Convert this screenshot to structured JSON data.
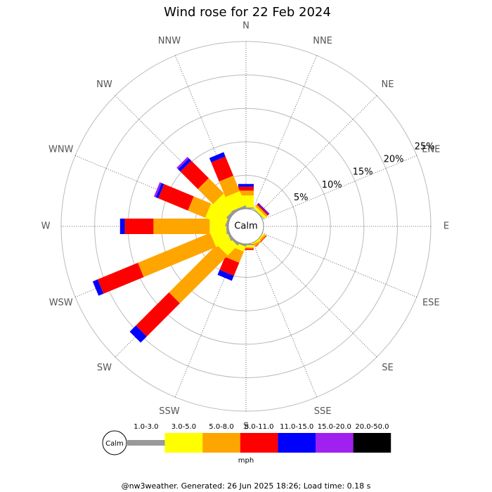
{
  "chart_data": {
    "type": "windrose",
    "title": "Wind rose for 22 Feb 2024",
    "categories": [
      "N",
      "NNE",
      "NE",
      "ENE",
      "E",
      "ESE",
      "SE",
      "SSE",
      "S",
      "SSW",
      "SW",
      "WSW",
      "W",
      "WNW",
      "NW",
      "NNW"
    ],
    "series": [
      {
        "name": "1.0-3.0",
        "color": "#999999",
        "values": [
          0.2,
          0,
          0.1,
          0,
          0,
          0,
          0,
          0,
          0.2,
          0.2,
          0.3,
          0.3,
          0.3,
          0.3,
          0.4,
          0.3
        ]
      },
      {
        "name": "3.0-5.0",
        "color": "#ffff00",
        "values": [
          1.8,
          0,
          0.4,
          0,
          0,
          0,
          0.2,
          0.2,
          0.3,
          0.8,
          2.1,
          2.4,
          2.5,
          3.2,
          2.8,
          2.3
        ]
      },
      {
        "name": "5.0-8.0",
        "color": "#ffa500",
        "values": [
          0.7,
          0,
          0.3,
          0,
          0,
          0,
          0.3,
          0.3,
          0.2,
          1.8,
          10.1,
          11.7,
          8.4,
          2.8,
          3.2,
          2.5
        ]
      },
      {
        "name": "8.0-11.0",
        "color": "#ff0000",
        "values": [
          0.6,
          0,
          0.2,
          0,
          0,
          0,
          0.1,
          0,
          0.2,
          2.1,
          7.0,
          6.5,
          4.3,
          4.8,
          3.7,
          3.1
        ]
      },
      {
        "name": "11.0-15.0",
        "color": "#0000ff",
        "values": [
          0.4,
          0,
          0.1,
          0,
          0,
          0,
          0,
          0,
          0,
          0.8,
          1.3,
          0.8,
          0.7,
          0.4,
          0.5,
          0.7
        ]
      },
      {
        "name": "15.0-20.0",
        "color": "#a020f0",
        "values": [
          0,
          0,
          0.1,
          0,
          0,
          0,
          0,
          0,
          0,
          0,
          0,
          0,
          0,
          0.3,
          0.3,
          0
        ]
      },
      {
        "name": "20.0-50.0",
        "color": "#000000",
        "values": [
          0,
          0,
          0,
          0,
          0,
          0,
          0,
          0,
          0,
          0,
          0,
          0,
          0,
          0,
          0,
          0
        ]
      }
    ],
    "ylim": [
      0,
      25
    ],
    "yticks": [
      {
        "value": 5,
        "label": "5%"
      },
      {
        "value": 10,
        "label": "10%"
      },
      {
        "value": 15,
        "label": "15%"
      },
      {
        "value": 20,
        "label": "20%"
      },
      {
        "value": 25,
        "label": "25%"
      }
    ],
    "calm_label": "Calm",
    "legend_unit": "mph",
    "footer": "@nw3weather.  Generated: 26 Jun 2025 18:26; Load time: 0.18 s"
  }
}
